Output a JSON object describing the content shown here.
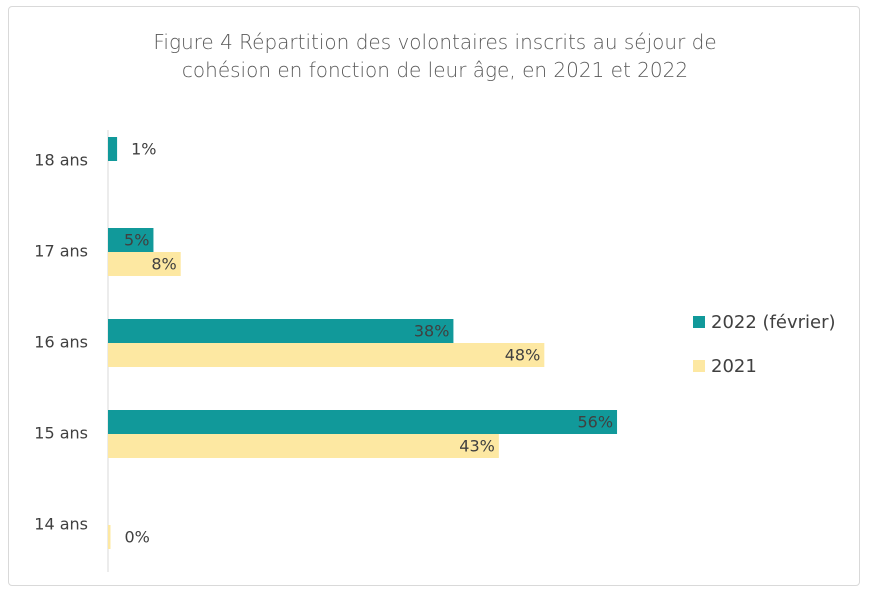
{
  "chart_data": {
    "type": "hbar",
    "title": "Figure 4 Répartition des volontaires inscrits au séjour de cohésion en fonction de leur âge, en 2021 et 2022",
    "categories": [
      "18 ans",
      "17 ans",
      "16 ans",
      "15 ans",
      "14 ans"
    ],
    "series": [
      {
        "name": "2022 (février)",
        "color": "#11999a",
        "values": [
          1,
          5,
          38,
          56,
          null
        ],
        "value_labels": [
          "1%",
          "5%",
          "38%",
          "56%",
          null
        ]
      },
      {
        "name": "2021",
        "color": "#fde8a2",
        "values": [
          null,
          8,
          48,
          43,
          0
        ],
        "value_labels": [
          null,
          "8%",
          "48%",
          "43%",
          "0%"
        ]
      }
    ],
    "legend": "right"
  }
}
